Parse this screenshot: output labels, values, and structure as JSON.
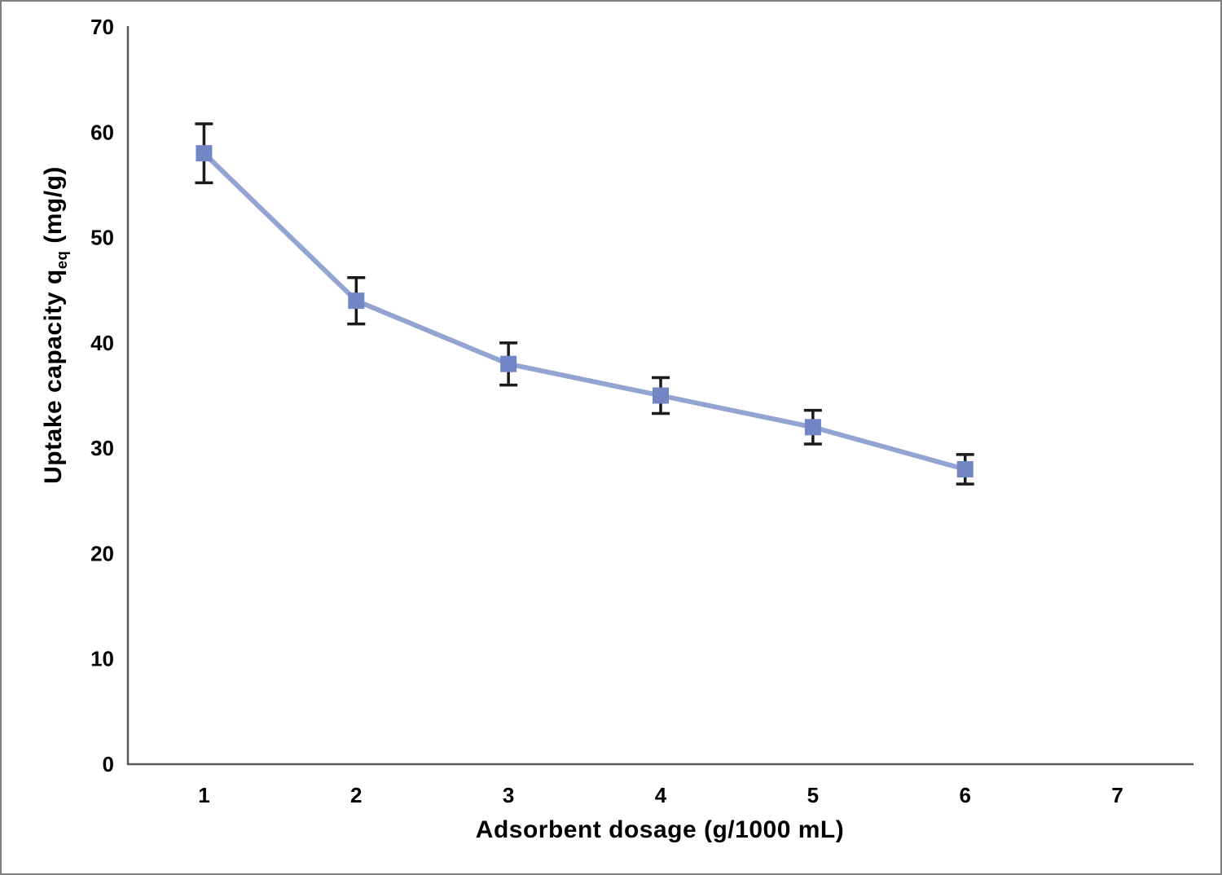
{
  "chart_data": {
    "type": "line",
    "title": "",
    "xlabel": "Adsorbent dosage (g/1000 mL)",
    "ylabel": {
      "prefix": "Uptake capacity q",
      "subscript": "eq",
      "suffix": " (mg/g)",
      "full": "Uptake capacity q_eq (mg/g)"
    },
    "x": [
      1,
      2,
      3,
      4,
      5,
      6
    ],
    "y": [
      58,
      44,
      38,
      35,
      32,
      28
    ],
    "yerr": [
      2.8,
      2.2,
      2.0,
      1.7,
      1.6,
      1.4
    ],
    "xticks": [
      1,
      2,
      3,
      4,
      5,
      6,
      7
    ],
    "yticks": [
      0,
      10,
      20,
      30,
      40,
      50,
      60,
      70
    ],
    "xlim": [
      0.5,
      7.5
    ],
    "ylim": [
      0,
      70
    ],
    "grid": false,
    "legend": "none",
    "marker": "square",
    "colors": {
      "line": "#93a3d2",
      "marker": "#7285c4",
      "error_bar": "#1a1a1a",
      "axis": "#595959",
      "text": "#000000",
      "border": "#7f7f7f"
    }
  }
}
